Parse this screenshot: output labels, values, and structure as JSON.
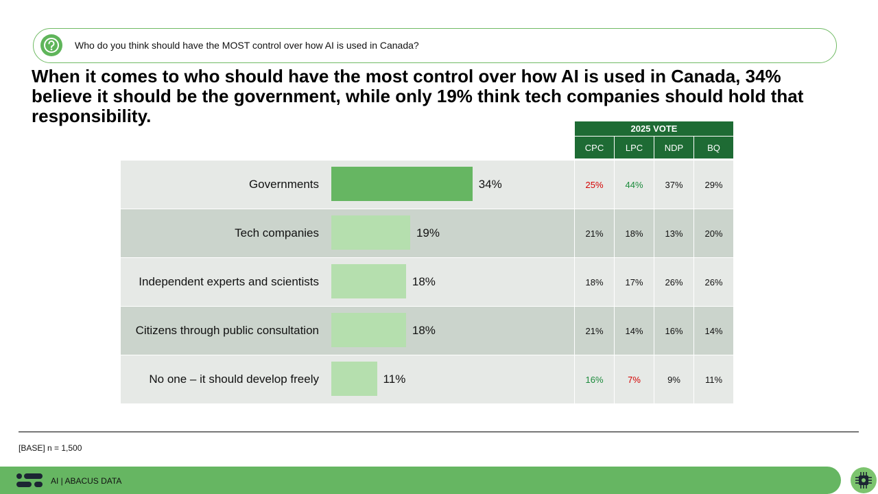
{
  "question": "Who do you think should have the MOST control over how AI is used in Canada?",
  "headline": "When it comes to who should have the most control over how AI is used in Canada, 34% believe it should be the government, while only 19% think tech companies should hold that responsibility.",
  "vote_header": "2025 VOTE",
  "parties": [
    "CPC",
    "LPC",
    "NDP",
    "BQ"
  ],
  "colors": {
    "bar_highlight": "#66b662",
    "bar_default": "#b5dfae",
    "header_green": "#1e6b34",
    "low_value": "#d40000",
    "high_value": "#1a8a3a"
  },
  "chart_data": {
    "type": "bar",
    "orientation": "horizontal",
    "categories": [
      "Governments",
      "Tech companies",
      "Independent experts and scientists",
      "Citizens through public consultation",
      "No one – it should develop freely"
    ],
    "values": [
      34,
      19,
      18,
      18,
      11
    ],
    "value_labels": [
      "34%",
      "19%",
      "18%",
      "18%",
      "11%"
    ],
    "xlim": [
      0,
      100
    ],
    "breakdown": [
      {
        "cells": [
          {
            "text": "25%",
            "flag": "low"
          },
          {
            "text": "44%",
            "flag": "high"
          },
          {
            "text": "37%",
            "flag": ""
          },
          {
            "text": "29%",
            "flag": ""
          }
        ]
      },
      {
        "cells": [
          {
            "text": "21%",
            "flag": ""
          },
          {
            "text": "18%",
            "flag": ""
          },
          {
            "text": "13%",
            "flag": ""
          },
          {
            "text": "20%",
            "flag": ""
          }
        ]
      },
      {
        "cells": [
          {
            "text": "18%",
            "flag": ""
          },
          {
            "text": "17%",
            "flag": ""
          },
          {
            "text": "26%",
            "flag": ""
          },
          {
            "text": "26%",
            "flag": ""
          }
        ]
      },
      {
        "cells": [
          {
            "text": "21%",
            "flag": ""
          },
          {
            "text": "14%",
            "flag": ""
          },
          {
            "text": "16%",
            "flag": ""
          },
          {
            "text": "14%",
            "flag": ""
          }
        ]
      },
      {
        "cells": [
          {
            "text": "16%",
            "flag": "high"
          },
          {
            "text": "7%",
            "flag": "low"
          },
          {
            "text": "9%",
            "flag": ""
          },
          {
            "text": "11%",
            "flag": ""
          }
        ]
      }
    ]
  },
  "base_note": "[BASE] n = 1,500",
  "footer_text": "AI  |  ABACUS DATA",
  "icons": {
    "question": "question-icon",
    "logo": "abacus-logo-icon",
    "badge": "ai-chip-icon"
  }
}
